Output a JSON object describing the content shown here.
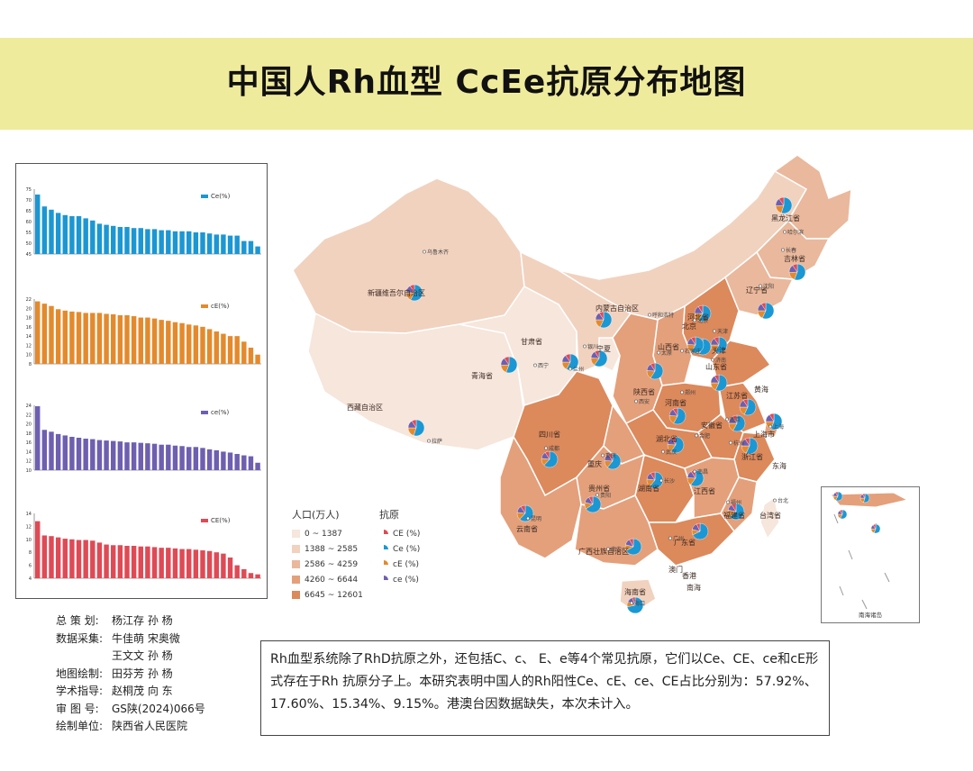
{
  "title": "中国人Rh血型 CcEe抗原分布地图",
  "chart_data": [
    {
      "type": "bar",
      "series": [
        {
          "name": "Ce(%)",
          "values": [
            72.5,
            67,
            65.5,
            64,
            63,
            62.5,
            62.5,
            61.5,
            60.5,
            59,
            58.5,
            58,
            57.5,
            57.5,
            57,
            57,
            56.5,
            56.5,
            56,
            56,
            55.5,
            55.5,
            55.5,
            55,
            55,
            54.5,
            54,
            54,
            53.5,
            53.5,
            51,
            51,
            48.5
          ]
        }
      ],
      "ylim": [
        45,
        75
      ],
      "yticks": [
        45,
        50,
        55,
        60,
        65,
        70,
        75
      ],
      "color": "#1b97d3"
    },
    {
      "type": "bar",
      "series": [
        {
          "name": "cE(%)",
          "values": [
            21.5,
            21,
            20.5,
            19.8,
            19.5,
            19.3,
            19.2,
            19,
            19,
            19,
            18.8,
            18.7,
            18.5,
            18.5,
            18.3,
            18,
            18,
            17.8,
            17.5,
            17.3,
            17,
            16.8,
            16.5,
            16.3,
            16,
            15.5,
            15,
            14.5,
            14,
            14,
            12.8,
            11.5,
            10
          ]
        }
      ],
      "ylim": [
        8,
        22
      ],
      "yticks": [
        8,
        10,
        12,
        14,
        16,
        18,
        20,
        22
      ],
      "color": "#e48a2c"
    },
    {
      "type": "bar",
      "series": [
        {
          "name": "ce(%)",
          "values": [
            23.8,
            18.7,
            18.3,
            17.8,
            17.5,
            17.2,
            17,
            16.8,
            16.7,
            16.5,
            16.4,
            16.3,
            16.2,
            16,
            16,
            15.9,
            15.8,
            15.7,
            15.5,
            15.5,
            15.3,
            15.2,
            15,
            15,
            14.8,
            14.5,
            14.3,
            14,
            13.8,
            13.5,
            13.2,
            13,
            11.6
          ]
        }
      ],
      "ylim": [
        10,
        24
      ],
      "yticks": [
        10,
        12,
        14,
        16,
        18,
        20,
        22,
        24
      ],
      "color": "#6e5fb0"
    },
    {
      "type": "bar",
      "series": [
        {
          "name": "CE(%)",
          "values": [
            12.8,
            10.6,
            10.5,
            10.3,
            10.1,
            10,
            9.9,
            9.9,
            9.8,
            9.5,
            9.2,
            9.1,
            9.1,
            9,
            9,
            8.9,
            8.9,
            8.8,
            8.7,
            8.7,
            8.6,
            8.5,
            8.5,
            8.4,
            8.3,
            8.2,
            8,
            7.8,
            7.2,
            6,
            5.4,
            4.8,
            4.6
          ]
        }
      ],
      "ylim": [
        4,
        14
      ],
      "yticks": [
        4,
        6,
        8,
        10,
        12,
        14
      ],
      "color": "#df4a55"
    }
  ],
  "credits": [
    {
      "label": "总  策  划:",
      "value": "杨江存  孙    杨"
    },
    {
      "label": "数据采集:",
      "value": "牛佳萌  宋奥微"
    },
    {
      "label": "",
      "value": "王文文  孙    杨"
    },
    {
      "label": "地图绘制:",
      "value": "田芬芳  孙    杨"
    },
    {
      "label": "学术指导:",
      "value": "赵桐茂  向    东"
    },
    {
      "label": "审  图  号:",
      "value": "GS陕(2024)066号"
    },
    {
      "label": "绘制单位:",
      "value": "陕西省人民医院"
    }
  ],
  "note": "Rh血型系统除了RhD抗原之外，还包括C、c、 E、e等4个常见抗原，它们以Ce、CE、ce和cE形式存在于Rh  抗原分子上。本研究表明中国人的Rh阳性Ce、cE、ce、CE占比分别为：57.92%、17.60%、15.34%、9.15%。港澳台因数据缺失，本次未计入。",
  "legend_population": {
    "title": "人口(万人)",
    "items": [
      {
        "label": "0 ~ 1387",
        "color": "#f6e6dc"
      },
      {
        "label": "1388 ~ 2585",
        "color": "#f1d2bf"
      },
      {
        "label": "2586 ~ 4259",
        "color": "#eab89c"
      },
      {
        "label": "4260 ~ 6644",
        "color": "#e4a07b"
      },
      {
        "label": "6645 ~ 12601",
        "color": "#dc895c"
      }
    ]
  },
  "legend_antigen": {
    "title": "抗原",
    "items": [
      {
        "label": "CE (%)",
        "color": "#df4a55"
      },
      {
        "label": "Ce (%)",
        "color": "#1b97d3"
      },
      {
        "label": "cE (%)",
        "color": "#e48a2c"
      },
      {
        "label": "ce  (%)",
        "color": "#6e5fb0"
      }
    ]
  },
  "map_labels": [
    "新疆维吾尔自治区",
    "西藏自治区",
    "青海省",
    "甘肃省",
    "内蒙古自治区",
    "黑龙江省",
    "吉林省",
    "辽宁省",
    "河北省",
    "北京",
    "天津",
    "山西省",
    "山东省",
    "河南省",
    "陕西省",
    "宁夏",
    "四川省",
    "重庆",
    "湖北省",
    "安徽省",
    "江苏省",
    "上海市",
    "浙江省",
    "湖南省",
    "江西省",
    "福建省",
    "贵州省",
    "云南省",
    "广西壮族自治区",
    "广东省",
    "海南省",
    "台湾省",
    "香港",
    "澳门",
    "东海",
    "黄海",
    "南海"
  ],
  "map_cities": [
    "乌鲁木齐",
    "拉萨",
    "西宁",
    "兰州",
    "银川",
    "呼和浩特",
    "哈尔滨",
    "长春",
    "沈阳",
    "北京",
    "天津",
    "石家庄",
    "太原",
    "济南",
    "郑州",
    "西安",
    "成都",
    "重庆",
    "武汉",
    "合肥",
    "南京",
    "上海",
    "杭州",
    "长沙",
    "南昌",
    "福州",
    "贵阳",
    "昆明",
    "南宁",
    "广州",
    "海口",
    "台北"
  ],
  "map_pies": [
    {
      "region": "新疆",
      "Ce": 58,
      "cE": 17,
      "ce": 16,
      "CE": 9
    },
    {
      "region": "西藏",
      "Ce": 55,
      "cE": 20,
      "ce": 16,
      "CE": 9
    },
    {
      "region": "青海",
      "Ce": 56,
      "cE": 18,
      "ce": 16,
      "CE": 10
    },
    {
      "region": "甘肃",
      "Ce": 58,
      "cE": 17,
      "ce": 15,
      "CE": 10
    },
    {
      "region": "宁夏",
      "Ce": 60,
      "cE": 16,
      "ce": 15,
      "CE": 9
    },
    {
      "region": "内蒙古",
      "Ce": 57,
      "cE": 18,
      "ce": 16,
      "CE": 9
    },
    {
      "region": "黑龙江",
      "Ce": 55,
      "cE": 19,
      "ce": 16,
      "CE": 10
    },
    {
      "region": "吉林",
      "Ce": 56,
      "cE": 18,
      "ce": 16,
      "CE": 10
    },
    {
      "region": "辽宁",
      "Ce": 57,
      "cE": 18,
      "ce": 16,
      "CE": 9
    },
    {
      "region": "北京",
      "Ce": 58,
      "cE": 17,
      "ce": 16,
      "CE": 9
    },
    {
      "region": "天津",
      "Ce": 58,
      "cE": 17,
      "ce": 15,
      "CE": 10
    },
    {
      "region": "河北",
      "Ce": 57,
      "cE": 18,
      "ce": 16,
      "CE": 9
    },
    {
      "region": "山西",
      "Ce": 59,
      "cE": 17,
      "ce": 15,
      "CE": 9
    },
    {
      "region": "山东",
      "Ce": 57,
      "cE": 18,
      "ce": 16,
      "CE": 9
    },
    {
      "region": "陕西",
      "Ce": 59,
      "cE": 17,
      "ce": 15,
      "CE": 9
    },
    {
      "region": "河南",
      "Ce": 58,
      "cE": 18,
      "ce": 15,
      "CE": 9
    },
    {
      "region": "江苏",
      "Ce": 57,
      "cE": 18,
      "ce": 16,
      "CE": 9
    },
    {
      "region": "安徽",
      "Ce": 58,
      "cE": 17,
      "ce": 16,
      "CE": 9
    },
    {
      "region": "上海",
      "Ce": 56,
      "cE": 19,
      "ce": 16,
      "CE": 9
    },
    {
      "region": "四川",
      "Ce": 62,
      "cE": 15,
      "ce": 14,
      "CE": 9
    },
    {
      "region": "重庆",
      "Ce": 61,
      "cE": 15,
      "ce": 15,
      "CE": 9
    },
    {
      "region": "湖北",
      "Ce": 60,
      "cE": 16,
      "ce": 15,
      "CE": 9
    },
    {
      "region": "浙江",
      "Ce": 57,
      "cE": 18,
      "ce": 16,
      "CE": 9
    },
    {
      "region": "湖南",
      "Ce": 61,
      "cE": 16,
      "ce": 14,
      "CE": 9
    },
    {
      "region": "江西",
      "Ce": 60,
      "cE": 16,
      "ce": 15,
      "CE": 9
    },
    {
      "region": "贵州",
      "Ce": 64,
      "cE": 14,
      "ce": 13,
      "CE": 9
    },
    {
      "region": "云南",
      "Ce": 66,
      "cE": 13,
      "ce": 13,
      "CE": 8
    },
    {
      "region": "福建",
      "Ce": 62,
      "cE": 15,
      "ce": 14,
      "CE": 9
    },
    {
      "region": "广西",
      "Ce": 67,
      "cE": 12,
      "ce": 13,
      "CE": 8
    },
    {
      "region": "广东",
      "Ce": 68,
      "cE": 11,
      "ce": 14,
      "CE": 7
    },
    {
      "region": "海南",
      "Ce": 72,
      "cE": 10,
      "ce": 12,
      "CE": 6
    }
  ],
  "inset_label": "南海诸岛"
}
